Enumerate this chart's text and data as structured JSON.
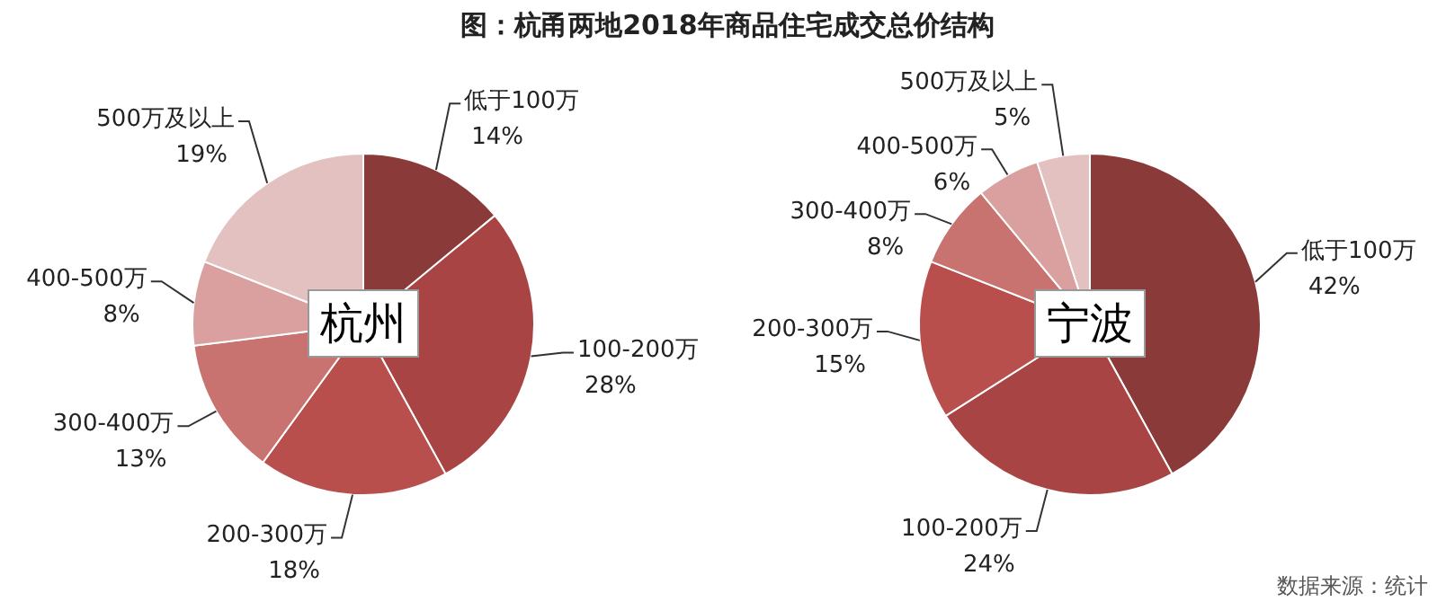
{
  "chart_data": [
    {
      "type": "pie",
      "title": "图：杭甬两地2018年商品住宅成交总价结构",
      "categories": [
        "低于100万",
        "100-200万",
        "200-300万",
        "300-400万",
        "400-500万",
        "500万及以上"
      ],
      "values": [
        14,
        28,
        18,
        13,
        8,
        19
      ],
      "value_labels": [
        "14%",
        "28%",
        "18%",
        "13%",
        "8%",
        "19%"
      ],
      "colors": [
        "#8b3a3a",
        "#a84444",
        "#b84f4c",
        "#c87370",
        "#d9a09f",
        "#e3c1c1"
      ],
      "legend": false,
      "annotations": [
        "杭州"
      ]
    },
    {
      "type": "pie",
      "categories": [
        "低于100万",
        "100-200万",
        "200-300万",
        "300-400万",
        "400-500万",
        "500万及以上"
      ],
      "values": [
        42,
        24,
        15,
        8,
        6,
        5
      ],
      "value_labels": [
        "42%",
        "24%",
        "15%",
        "8%",
        "6%",
        "5%"
      ],
      "colors": [
        "#8b3a3a",
        "#a84444",
        "#b84f4c",
        "#c87370",
        "#d9a09f",
        "#e3c1c1"
      ],
      "legend": false,
      "annotations": [
        "宁波",
        "数据来源：统计"
      ]
    }
  ]
}
